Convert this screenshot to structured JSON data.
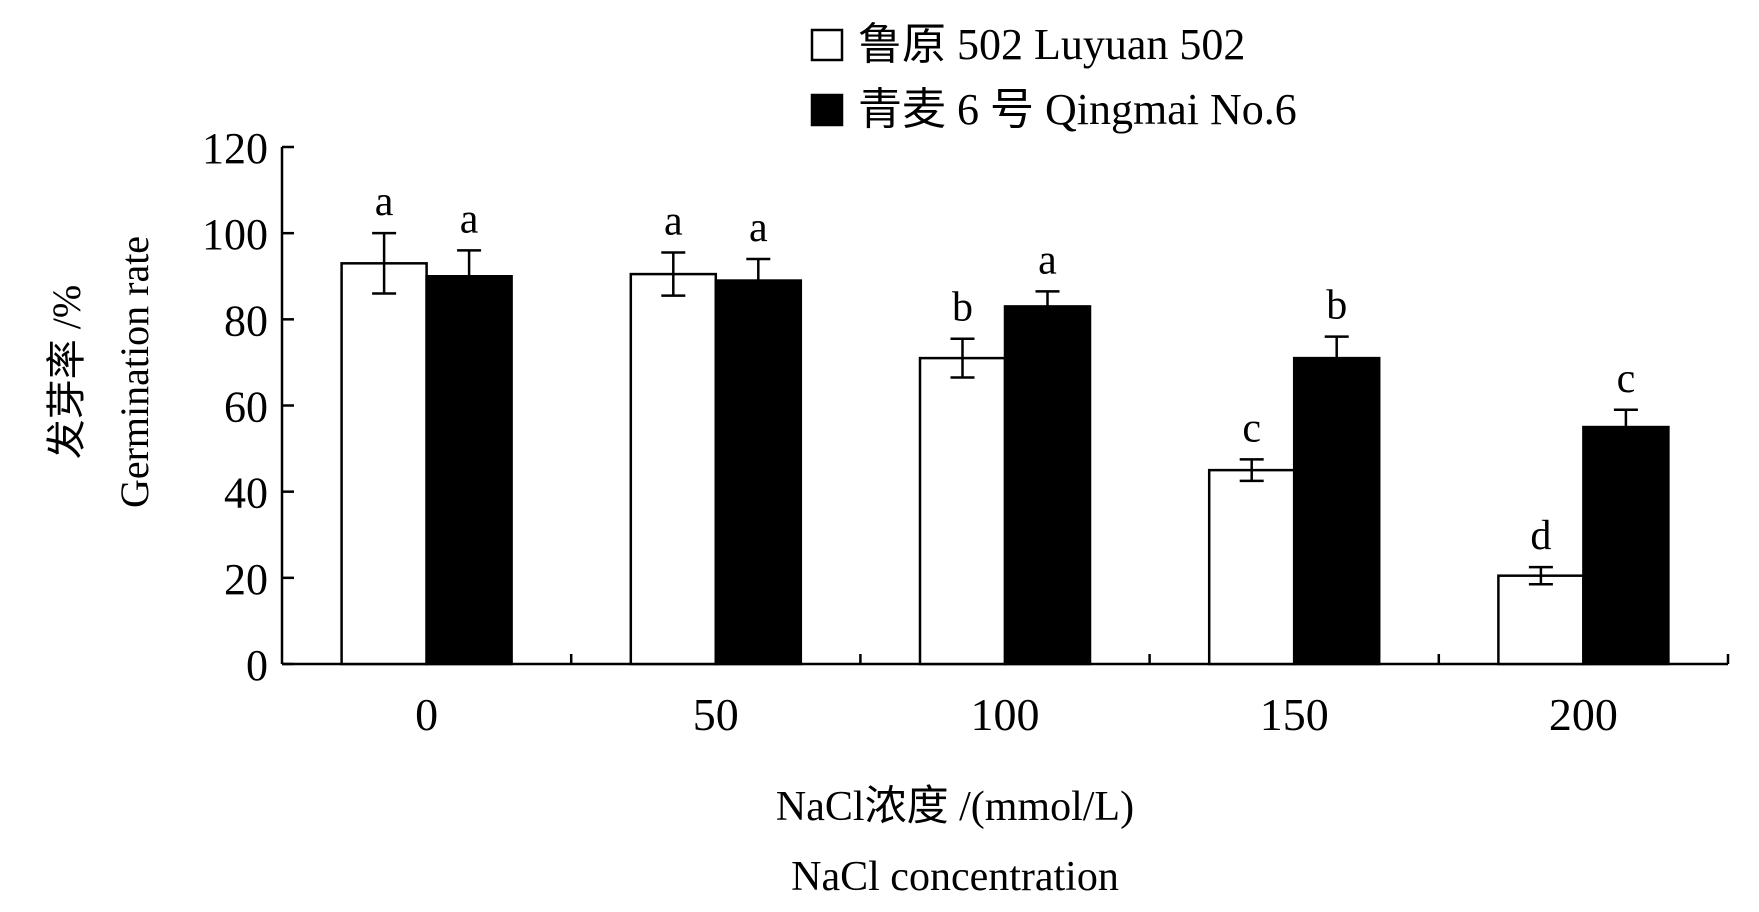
{
  "chart_data": {
    "type": "bar",
    "categories": [
      "0",
      "50",
      "100",
      "150",
      "200"
    ],
    "series": [
      {
        "name": "鲁原 502  Luyuan 502",
        "fill": "#ffffff",
        "values": [
          93,
          90.5,
          71,
          45,
          20.5
        ],
        "errors": [
          7,
          5,
          4.5,
          2.5,
          2
        ],
        "letters": [
          "a",
          "a",
          "b",
          "c",
          "d"
        ]
      },
      {
        "name": "青麦 6 号  Qingmai No.6",
        "fill": "#000000",
        "values": [
          90,
          89,
          83,
          71,
          55
        ],
        "errors": [
          6,
          5,
          3.5,
          5,
          4
        ],
        "letters": [
          "a",
          "a",
          "a",
          "b",
          "c"
        ]
      }
    ],
    "ylim": [
      0,
      120
    ],
    "yticks": [
      "0",
      "20",
      "40",
      "60",
      "80",
      "100",
      "120"
    ],
    "ylabel_cn": "发芽率 /%",
    "ylabel_en": "Germination rate",
    "xlabel_cn": "NaCl浓度 /(mmol/L)",
    "xlabel_en": "NaCl concentration",
    "legend_position": "top-right",
    "grid": false
  }
}
